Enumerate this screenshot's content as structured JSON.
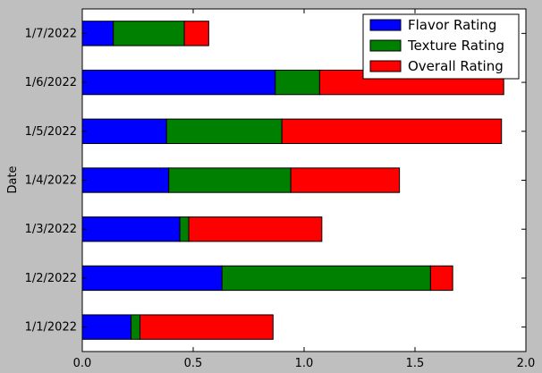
{
  "chart_data": {
    "type": "bar",
    "orientation": "horizontal",
    "stacked": true,
    "title": "",
    "xlabel": "",
    "ylabel": "Date",
    "xlim": [
      0,
      2.0
    ],
    "x_ticks": [
      "0.0",
      "0.5",
      "1.0",
      "1.5",
      "2.0"
    ],
    "categories": [
      "1/1/2022",
      "1/2/2022",
      "1/3/2022",
      "1/4/2022",
      "1/5/2022",
      "1/6/2022",
      "1/7/2022"
    ],
    "series": [
      {
        "name": "Flavor Rating",
        "color": "#0000ff",
        "values": [
          0.22,
          0.63,
          0.44,
          0.39,
          0.38,
          0.87,
          0.14
        ]
      },
      {
        "name": "Texture Rating",
        "color": "#008000",
        "values": [
          0.04,
          0.94,
          0.04,
          0.55,
          0.52,
          0.2,
          0.32
        ]
      },
      {
        "name": "Overall Rating",
        "color": "#ff0000",
        "values": [
          0.6,
          0.1,
          0.6,
          0.49,
          0.99,
          0.83,
          0.11
        ]
      }
    ],
    "grid": false,
    "legend_position": "top-right",
    "background": "#bfbfbf",
    "plot_background": "#ffffff"
  }
}
